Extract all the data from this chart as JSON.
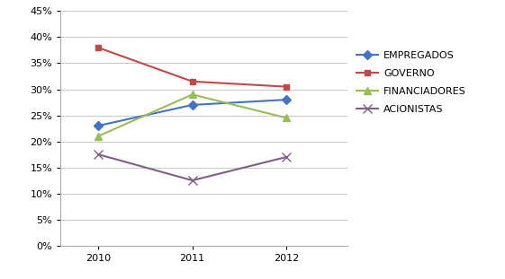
{
  "years": [
    2010,
    2011,
    2012
  ],
  "series_order": [
    "EMPREGADOS",
    "GOVERNO",
    "FINANCIADORES",
    "ACIONISTAS"
  ],
  "series": {
    "EMPREGADOS": [
      0.23,
      0.27,
      0.28
    ],
    "GOVERNO": [
      0.38,
      0.315,
      0.305
    ],
    "FINANCIADORES": [
      0.21,
      0.29,
      0.245
    ],
    "ACIONISTAS": [
      0.175,
      0.125,
      0.17
    ]
  },
  "colors": {
    "EMPREGADOS": "#4472C4",
    "GOVERNO": "#BE4B48",
    "FINANCIADORES": "#9BBB59",
    "ACIONISTAS": "#7F6084"
  },
  "markers": {
    "EMPREGADOS": "D",
    "GOVERNO": "s",
    "FINANCIADORES": "^",
    "ACIONISTAS": "x"
  },
  "marker_sizes": {
    "EMPREGADOS": 5,
    "GOVERNO": 5,
    "FINANCIADORES": 6,
    "ACIONISTAS": 7
  },
  "ylim": [
    0,
    0.45
  ],
  "yticks": [
    0.0,
    0.05,
    0.1,
    0.15,
    0.2,
    0.25,
    0.3,
    0.35,
    0.4,
    0.45
  ],
  "background_color": "#ffffff",
  "grid_color": "#c8c8c8",
  "tick_fontsize": 8,
  "legend_fontsize": 8,
  "line_width": 1.5
}
